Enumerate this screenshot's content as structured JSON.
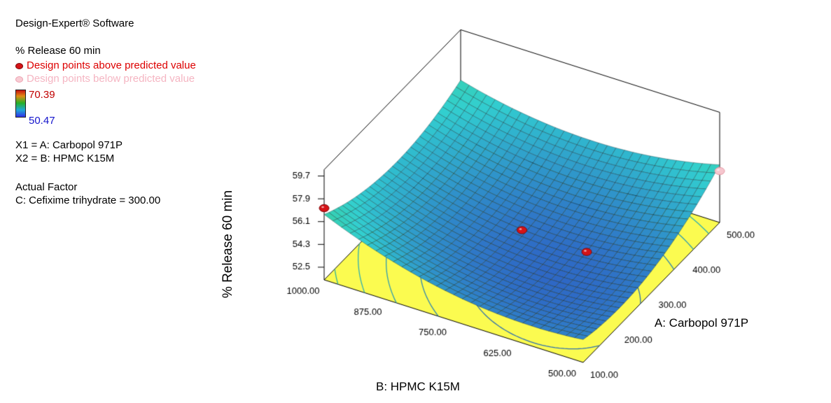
{
  "legend": {
    "software": "Design-Expert® Software",
    "response": "% Release 60 min",
    "points_above": "Design points above predicted value",
    "points_below": "Design points below predicted value",
    "scale_max": "70.39",
    "scale_min": "50.47",
    "x1": "X1 = A: Carbopol 971P",
    "x2": "X2 = B: HPMC K15M",
    "actual_factor_heading": "Actual Factor",
    "actual_factor_value": "C: Cefixime trihydrate = 300.00"
  },
  "chart_data": {
    "type": "surface3d",
    "response_label": "% Release 60 min",
    "colormap": {
      "range": [
        50.47,
        70.39
      ],
      "max_label": "70.39",
      "min_label": "50.47",
      "max_color": "#C00000",
      "min_color": "#1414CC"
    },
    "axes": {
      "a": {
        "label": "A: Carbopol 971P",
        "range": [
          100,
          500
        ],
        "ticks": [
          "100.00",
          "200.00",
          "300.00",
          "400.00",
          "500.00"
        ]
      },
      "b": {
        "label": "B: HPMC K15M",
        "range": [
          500,
          1000
        ],
        "ticks": [
          "500.00",
          "625.00",
          "750.00",
          "875.00",
          "1000.00"
        ]
      },
      "z": {
        "label": "% Release 60 min",
        "ticks": [
          "52.5",
          "54.3",
          "56.1",
          "57.9",
          "59.7"
        ],
        "values": [
          52.5,
          54.3,
          56.1,
          57.9,
          59.7
        ]
      }
    },
    "surface": {
      "model": "quadratic",
      "zmin": 52.4,
      "a0": 0.35,
      "b0": 0.3,
      "ka": 6.0,
      "kb": 5.6,
      "kab": -3.2,
      "grid": 30
    },
    "contour_levels": [
      53,
      53.8,
      54.6,
      55.4,
      56.2,
      57.0,
      57.8
    ],
    "design_points": [
      {
        "A": 100,
        "B": 1000,
        "relation": "above"
      },
      {
        "A": 300,
        "B": 750,
        "relation": "above"
      },
      {
        "A": 300,
        "B": 625,
        "relation": "above"
      },
      {
        "A": 500,
        "B": 500,
        "relation": "below"
      }
    ],
    "floor_color": "#FBFB50",
    "point_colors": {
      "above": "#D51317",
      "below": "#F6C6CE"
    }
  }
}
